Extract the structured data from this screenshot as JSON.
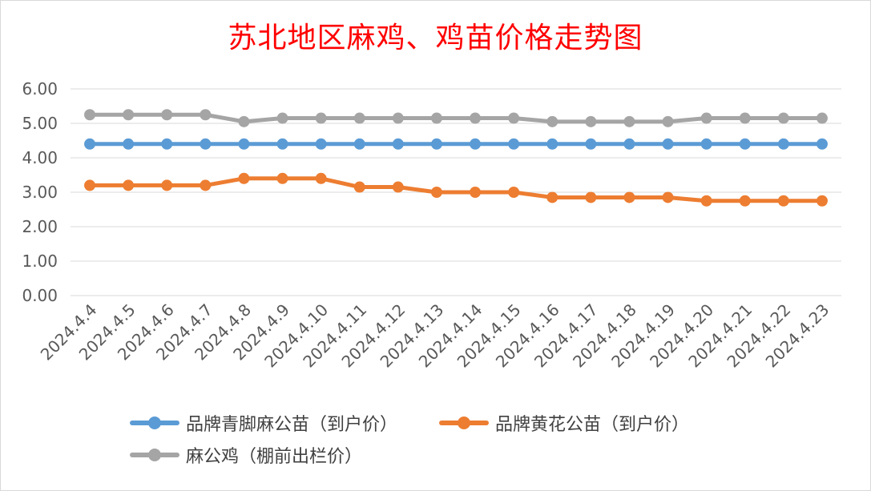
{
  "chart_data": {
    "type": "line",
    "title": "苏北地区麻鸡、鸡苗价格走势图",
    "categories": [
      "2024.4.4",
      "2024.4.5",
      "2024.4.6",
      "2024.4.7",
      "2024.4.8",
      "2024.4.9",
      "2024.4.10",
      "2024.4.11",
      "2024.4.12",
      "2024.4.13",
      "2024.4.14",
      "2024.4.15",
      "2024.4.16",
      "2024.4.17",
      "2024.4.18",
      "2024.4.19",
      "2024.4.20",
      "2024.4.21",
      "2024.4.22",
      "2024.4.23"
    ],
    "ylim": [
      0,
      6
    ],
    "yticks": [
      "0.00",
      "1.00",
      "2.00",
      "3.00",
      "4.00",
      "5.00",
      "6.00"
    ],
    "grid": true,
    "legend_position": "bottom",
    "series": [
      {
        "name": "品牌青脚麻公苗（到户价）",
        "color": "#5b9bd5",
        "values": [
          4.4,
          4.4,
          4.4,
          4.4,
          4.4,
          4.4,
          4.4,
          4.4,
          4.4,
          4.4,
          4.4,
          4.4,
          4.4,
          4.4,
          4.4,
          4.4,
          4.4,
          4.4,
          4.4,
          4.4
        ]
      },
      {
        "name": "品牌黄花公苗（到户价）",
        "color": "#ed7d31",
        "values": [
          3.2,
          3.2,
          3.2,
          3.2,
          3.4,
          3.4,
          3.4,
          3.15,
          3.15,
          3.0,
          3.0,
          3.0,
          2.85,
          2.85,
          2.85,
          2.85,
          2.75,
          2.75,
          2.75,
          2.75
        ]
      },
      {
        "name": "麻公鸡（棚前出栏价）",
        "color": "#a5a5a5",
        "values": [
          5.25,
          5.25,
          5.25,
          5.25,
          5.05,
          5.15,
          5.15,
          5.15,
          5.15,
          5.15,
          5.15,
          5.15,
          5.05,
          5.05,
          5.05,
          5.05,
          5.15,
          5.15,
          5.15,
          5.15
        ]
      }
    ]
  }
}
